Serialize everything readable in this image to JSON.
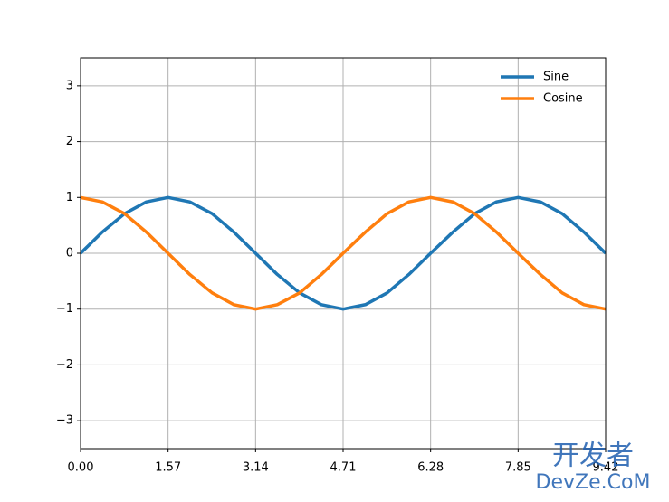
{
  "chart_data": {
    "type": "line",
    "x": [
      0,
      0.39,
      0.79,
      1.18,
      1.57,
      1.96,
      2.36,
      2.75,
      3.14,
      3.53,
      3.93,
      4.32,
      4.71,
      5.11,
      5.5,
      5.89,
      6.28,
      6.68,
      7.07,
      7.46,
      7.85,
      8.25,
      8.64,
      9.03,
      9.42
    ],
    "series": [
      {
        "name": "Sine",
        "color": "#1f77b4",
        "values": [
          0,
          0.38,
          0.71,
          0.92,
          1,
          0.92,
          0.71,
          0.38,
          0,
          -0.38,
          -0.71,
          -0.92,
          -1,
          -0.92,
          -0.71,
          -0.38,
          0,
          0.38,
          0.71,
          0.92,
          1,
          0.92,
          0.71,
          0.38,
          0
        ]
      },
      {
        "name": "Cosine",
        "color": "#ff7f0e",
        "values": [
          1,
          0.92,
          0.71,
          0.38,
          0,
          -0.38,
          -0.71,
          -0.92,
          -1,
          -0.92,
          -0.71,
          -0.38,
          0,
          0.38,
          0.71,
          0.92,
          1,
          0.92,
          0.71,
          0.38,
          0,
          -0.38,
          -0.71,
          -0.92,
          -1
        ]
      }
    ],
    "xlim": [
      0,
      9.42
    ],
    "ylim": [
      -3.5,
      3.5
    ],
    "xticks": [
      {
        "value": 0,
        "label": "0.00"
      },
      1.57,
      3.14,
      4.71,
      6.28,
      7.85,
      9.42
    ],
    "yticks": [
      {
        "value": -3,
        "label": "−3"
      },
      {
        "value": -2,
        "label": "−2"
      },
      {
        "value": -1,
        "label": "−1"
      },
      0,
      1,
      2,
      3
    ],
    "grid": true,
    "legend": "upper right"
  },
  "watermark": [
    "开发者",
    "DevZe.CoM"
  ]
}
